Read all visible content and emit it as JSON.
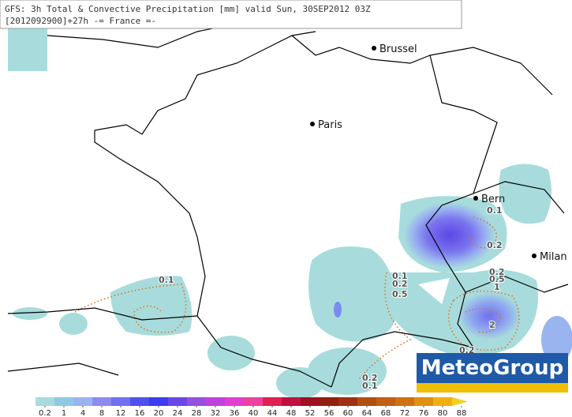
{
  "header": {
    "title": "GFS: 3h Total & Convective Precipitation [mm] valid Sun, 30SEP2012 03Z",
    "subtitle": "[2012092900]+27h -= France =-"
  },
  "cities": [
    "Brussel",
    "Paris",
    "Bern",
    "Milan"
  ],
  "contour_labels": [
    "0.1",
    "0.1",
    "0.2",
    "0.1",
    "0.2",
    "0.5",
    "0.2",
    "0.5",
    "1",
    "2",
    "0.2",
    "0.2",
    "0.1"
  ],
  "logo": "MeteoGroup",
  "legend": {
    "levels": [
      0.2,
      1,
      4,
      8,
      12,
      16,
      20,
      24,
      28,
      32,
      36,
      40,
      44,
      48,
      52,
      56,
      60,
      64,
      68,
      72,
      76,
      80,
      88
    ],
    "colors": [
      "#a8dcdc",
      "#90c8e6",
      "#9ab4f0",
      "#8c8cf0",
      "#7070f0",
      "#5050f0",
      "#3c3cf0",
      "#6a48e6",
      "#9650e0",
      "#c040e0",
      "#e040d0",
      "#f040a0",
      "#e02050",
      "#c01040",
      "#a01020",
      "#902010",
      "#a03010",
      "#b05010",
      "#c06010",
      "#d07010",
      "#e09010",
      "#f0b010",
      "#f0d020"
    ]
  }
}
